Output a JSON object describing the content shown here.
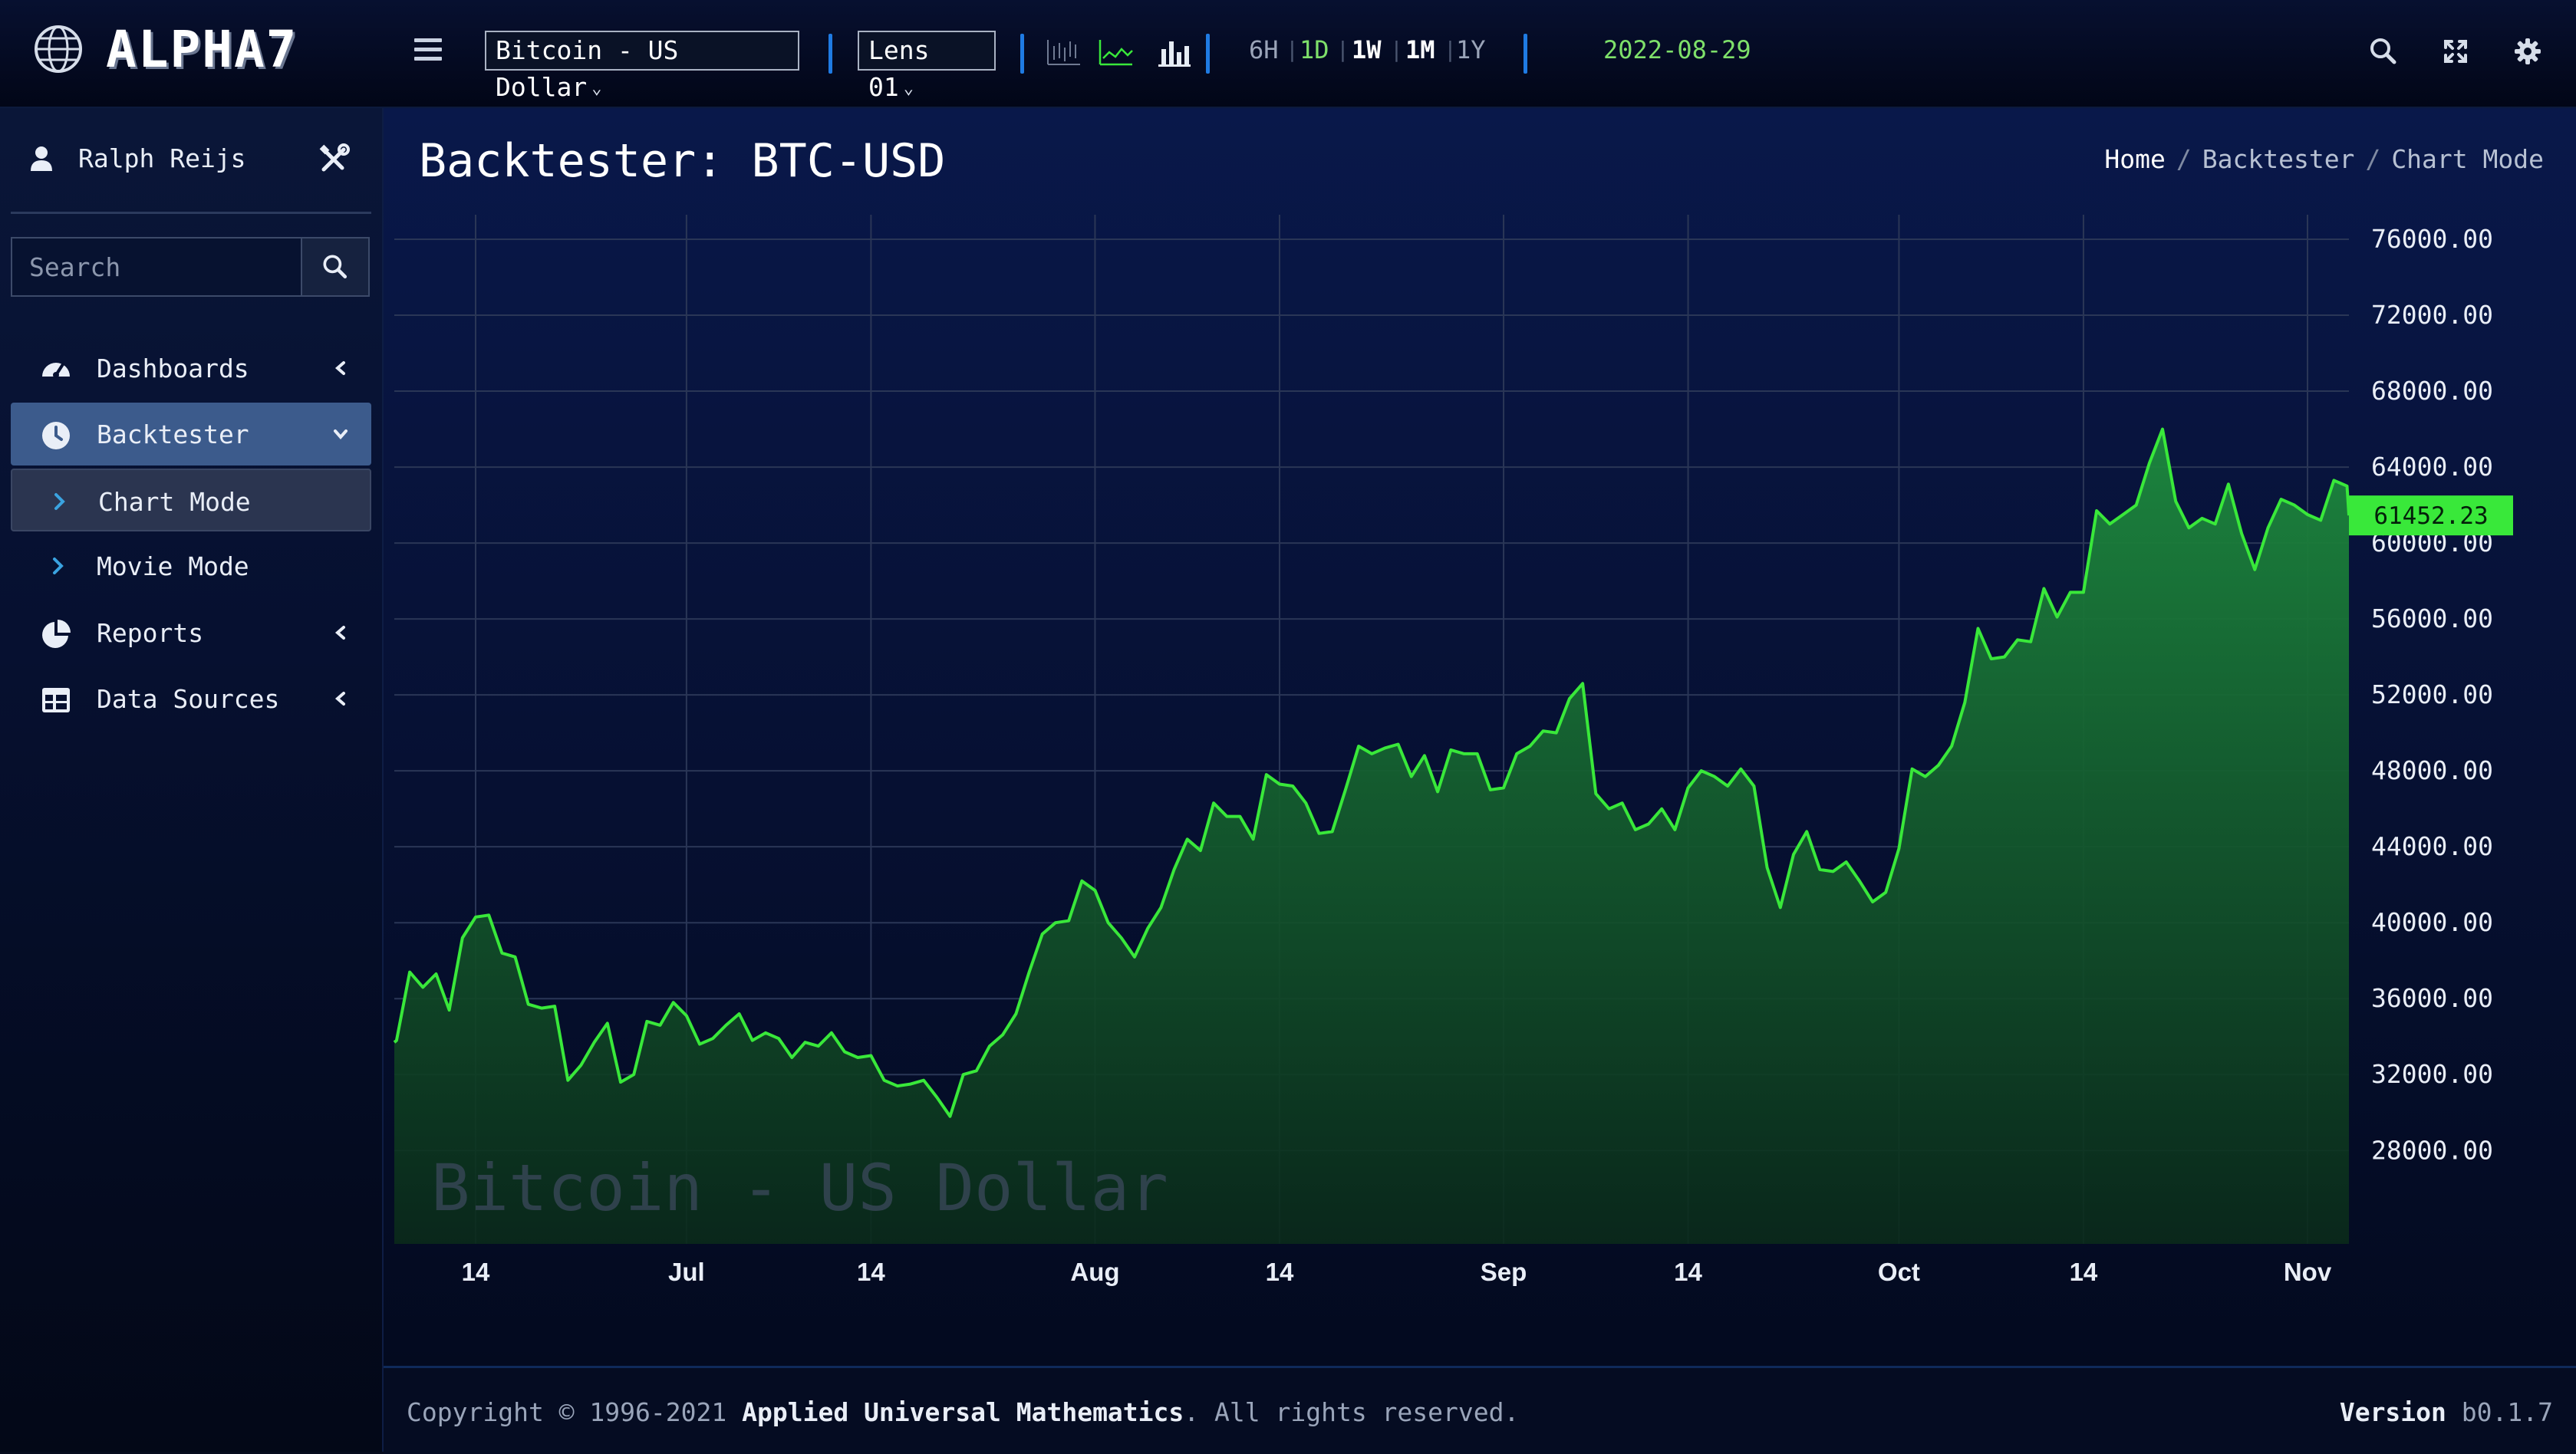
{
  "app": {
    "logo_text": "ALPHA7",
    "instrument": "Bitcoin - US Dollar",
    "lens": "Lens 01",
    "timeframes": [
      "6H",
      "1D",
      "1W",
      "1M",
      "1Y"
    ],
    "date": "2022-08-29",
    "colors": {
      "accent_green": "#39e83a",
      "date_green": "#7ee06a",
      "separator_blue": "#1f7be3",
      "active_nav": "#3c5b8c"
    }
  },
  "sidebar": {
    "user_name": "Ralph Reijs",
    "search_placeholder": "Search",
    "items": [
      {
        "label": "Dashboards",
        "icon": "gauge-icon"
      },
      {
        "label": "Backtester",
        "icon": "clock-icon"
      },
      {
        "label": "Chart Mode",
        "icon": "chevron-right-icon"
      },
      {
        "label": "Movie Mode",
        "icon": "chevron-right-icon"
      },
      {
        "label": "Reports",
        "icon": "pie-chart-icon"
      },
      {
        "label": "Data Sources",
        "icon": "table-icon"
      }
    ]
  },
  "page": {
    "title": "Backtester: BTC-USD",
    "breadcrumb": [
      "Home",
      "Backtester",
      "Chart Mode"
    ],
    "sep": "/"
  },
  "chart_data": {
    "type": "area",
    "watermark": "Bitcoin - US Dollar",
    "ylim": [
      24500,
      76000
    ],
    "y_ticks": [
      76000,
      72000,
      68000,
      64000,
      60000,
      56000,
      52000,
      48000,
      44000,
      40000,
      36000,
      32000,
      28000
    ],
    "y_tick_labels": [
      "76000.00",
      "72000.00",
      "68000.00",
      "64000.00",
      "60000.00",
      "56000.00",
      "52000.00",
      "48000.00",
      "44000.00",
      "40000.00",
      "36000.00",
      "32000.00",
      "28000.00"
    ],
    "x_ticks": [
      {
        "label": "14",
        "day": 14,
        "bold": false
      },
      {
        "label": "Jul",
        "day": 30,
        "bold": true
      },
      {
        "label": "14",
        "day": 44,
        "bold": false
      },
      {
        "label": "Aug",
        "day": 61,
        "bold": true
      },
      {
        "label": "14",
        "day": 75,
        "bold": false
      },
      {
        "label": "Sep",
        "day": 92,
        "bold": true
      },
      {
        "label": "14",
        "day": 106,
        "bold": false
      },
      {
        "label": "Oct",
        "day": 122,
        "bold": true
      },
      {
        "label": "14",
        "day": 136,
        "bold": false
      },
      {
        "label": "Nov",
        "day": 153,
        "bold": true
      }
    ],
    "xlim": [
      7,
      155
    ],
    "last_value_label": "61452.23",
    "series": [
      {
        "color": "#39e83a",
        "points": [
          [
            7,
            33700
          ],
          [
            8,
            33800
          ],
          [
            9,
            37400
          ],
          [
            10,
            36600
          ],
          [
            11,
            37300
          ],
          [
            12,
            35400
          ],
          [
            13,
            39200
          ],
          [
            14,
            40300
          ],
          [
            15,
            40400
          ],
          [
            16,
            38400
          ],
          [
            17,
            38200
          ],
          [
            18,
            35700
          ],
          [
            19,
            35500
          ],
          [
            20,
            35600
          ],
          [
            21,
            31700
          ],
          [
            22,
            32500
          ],
          [
            23,
            33700
          ],
          [
            24,
            34700
          ],
          [
            25,
            31600
          ],
          [
            26,
            32000
          ],
          [
            27,
            34800
          ],
          [
            28,
            34600
          ],
          [
            29,
            35800
          ],
          [
            30,
            35100
          ],
          [
            31,
            33600
          ],
          [
            32,
            33900
          ],
          [
            33,
            34600
          ],
          [
            34,
            35200
          ],
          [
            35,
            33800
          ],
          [
            36,
            34200
          ],
          [
            37,
            33900
          ],
          [
            38,
            32900
          ],
          [
            39,
            33700
          ],
          [
            40,
            33500
          ],
          [
            41,
            34200
          ],
          [
            42,
            33200
          ],
          [
            43,
            32900
          ],
          [
            44,
            33000
          ],
          [
            45,
            31700
          ],
          [
            46,
            31400
          ],
          [
            47,
            31500
          ],
          [
            48,
            31700
          ],
          [
            49,
            30800
          ],
          [
            50,
            29800
          ],
          [
            51,
            32000
          ],
          [
            52,
            32200
          ],
          [
            53,
            33500
          ],
          [
            54,
            34100
          ],
          [
            55,
            35200
          ],
          [
            56,
            37400
          ],
          [
            57,
            39400
          ],
          [
            58,
            40000
          ],
          [
            59,
            40100
          ],
          [
            60,
            42200
          ],
          [
            61,
            41700
          ],
          [
            62,
            40000
          ],
          [
            63,
            39200
          ],
          [
            64,
            38200
          ],
          [
            65,
            39700
          ],
          [
            66,
            40800
          ],
          [
            67,
            42800
          ],
          [
            68,
            44400
          ],
          [
            69,
            43800
          ],
          [
            70,
            46300
          ],
          [
            71,
            45600
          ],
          [
            72,
            45600
          ],
          [
            73,
            44400
          ],
          [
            74,
            47800
          ],
          [
            75,
            47300
          ],
          [
            76,
            47200
          ],
          [
            77,
            46300
          ],
          [
            78,
            44700
          ],
          [
            79,
            44800
          ],
          [
            80,
            47000
          ],
          [
            81,
            49300
          ],
          [
            82,
            48900
          ],
          [
            83,
            49200
          ],
          [
            84,
            49400
          ],
          [
            85,
            47700
          ],
          [
            86,
            48800
          ],
          [
            87,
            46900
          ],
          [
            88,
            49100
          ],
          [
            89,
            48900
          ],
          [
            90,
            48900
          ],
          [
            91,
            47000
          ],
          [
            92,
            47100
          ],
          [
            93,
            48900
          ],
          [
            94,
            49300
          ],
          [
            95,
            50100
          ],
          [
            96,
            50000
          ],
          [
            97,
            51800
          ],
          [
            98,
            52600
          ],
          [
            99,
            46800
          ],
          [
            100,
            46000
          ],
          [
            101,
            46300
          ],
          [
            102,
            44900
          ],
          [
            103,
            45200
          ],
          [
            104,
            46000
          ],
          [
            105,
            44900
          ],
          [
            106,
            47100
          ],
          [
            107,
            48000
          ],
          [
            108,
            47700
          ],
          [
            109,
            47200
          ],
          [
            110,
            48100
          ],
          [
            111,
            47200
          ],
          [
            112,
            42900
          ],
          [
            113,
            40800
          ],
          [
            114,
            43600
          ],
          [
            115,
            44800
          ],
          [
            116,
            42800
          ],
          [
            117,
            42700
          ],
          [
            118,
            43200
          ],
          [
            119,
            42200
          ],
          [
            120,
            41100
          ],
          [
            121,
            41600
          ],
          [
            122,
            43900
          ],
          [
            123,
            48100
          ],
          [
            124,
            47700
          ],
          [
            125,
            48300
          ],
          [
            126,
            49300
          ],
          [
            127,
            51600
          ],
          [
            128,
            55500
          ],
          [
            129,
            53900
          ],
          [
            130,
            54000
          ],
          [
            131,
            54900
          ],
          [
            132,
            54800
          ],
          [
            133,
            57600
          ],
          [
            134,
            56100
          ],
          [
            135,
            57400
          ],
          [
            136,
            57400
          ],
          [
            137,
            61700
          ],
          [
            138,
            61000
          ],
          [
            139,
            61500
          ],
          [
            140,
            62000
          ],
          [
            141,
            64200
          ],
          [
            142,
            66000
          ],
          [
            143,
            62200
          ],
          [
            144,
            60800
          ],
          [
            145,
            61300
          ],
          [
            146,
            61000
          ],
          [
            147,
            63100
          ],
          [
            148,
            60500
          ],
          [
            149,
            58600
          ],
          [
            150,
            60800
          ],
          [
            151,
            62300
          ],
          [
            152,
            62000
          ],
          [
            153,
            61500
          ],
          [
            154,
            61200
          ],
          [
            155,
            63300
          ],
          [
            156,
            63000
          ],
          [
            157,
            61452
          ]
        ]
      }
    ]
  },
  "footer": {
    "copyright_prefix": "Copyright © 1996-2021",
    "company": "Applied Universal Mathematics",
    "copyright_suffix": ". All rights reserved.",
    "version_label": "Version",
    "version": "b0.1.7"
  }
}
